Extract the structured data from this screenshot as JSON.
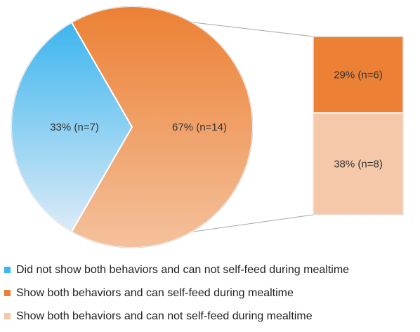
{
  "chart_data": {
    "type": "pie",
    "title": "",
    "pie": {
      "slices": [
        {
          "key": "did_not_show",
          "label": "33% (n=7)",
          "value": 7,
          "percent": 33,
          "color": "#3db5ee",
          "color_light": "#dcebf7"
        },
        {
          "key": "show_behaviors",
          "label": "67% (n=14)",
          "value": 14,
          "percent": 67,
          "color": "#ec8034",
          "color_light": "#f4c19c"
        }
      ]
    },
    "breakdown": {
      "of": "show_behaviors",
      "segments": [
        {
          "key": "can_self_feed",
          "label": "29% (n=6)",
          "value": 6,
          "percent": 29,
          "color": "#ec8034"
        },
        {
          "key": "can_not_self_feed",
          "label": "38% (n=8)",
          "value": 8,
          "percent": 38,
          "color": "#f6c8aa"
        }
      ]
    },
    "legend": {
      "position": "bottom",
      "entries": [
        {
          "label": "Did not show both behaviors and can not self-feed during mealtime",
          "color": "#3db5ee"
        },
        {
          "label": "Show both behaviors and can self-feed during mealtime",
          "color": "#ec8034"
        },
        {
          "label": "Show both behaviors and can not self-feed during mealtime",
          "color": "#f6c8aa"
        }
      ]
    }
  }
}
